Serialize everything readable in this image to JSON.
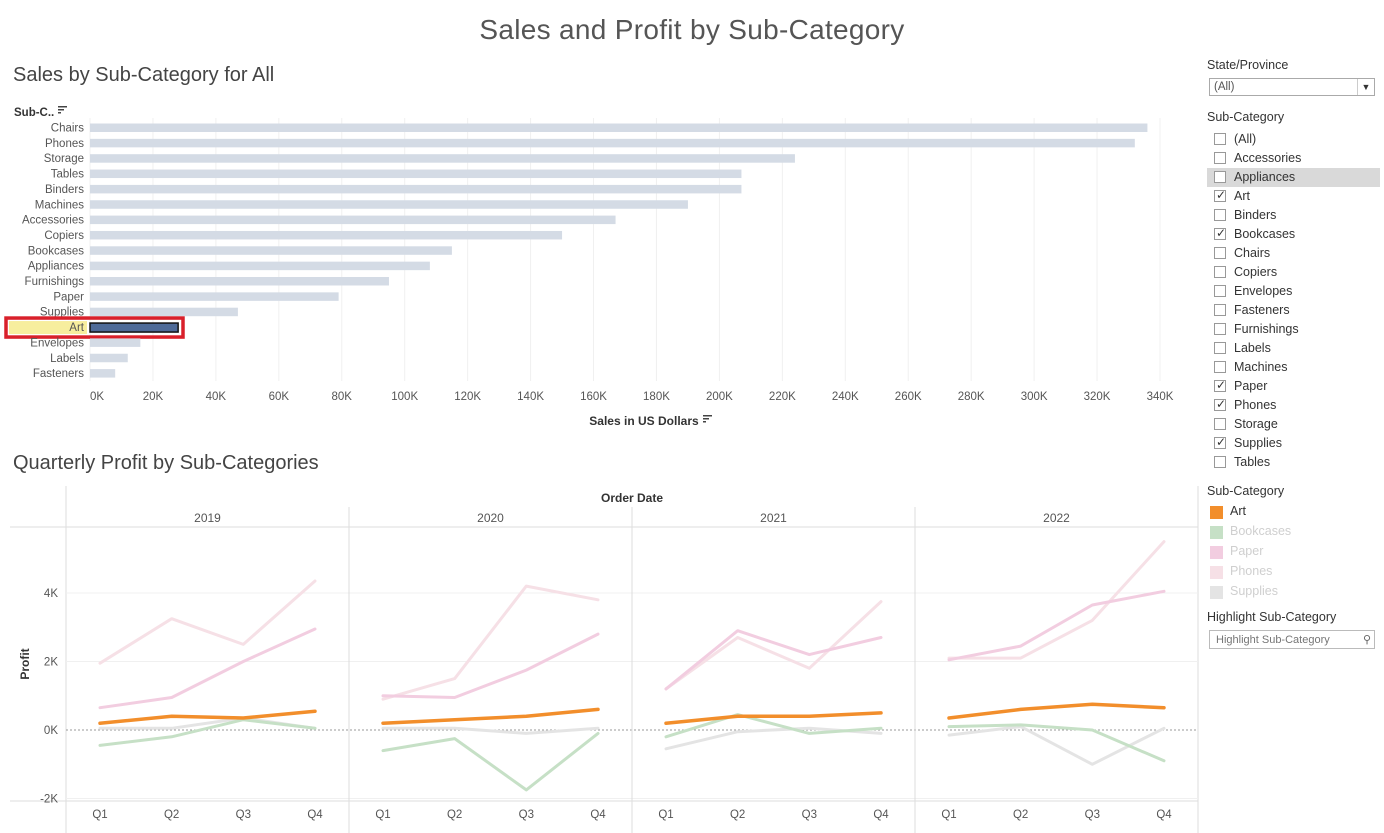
{
  "title": "Sales and Profit by Sub-Category",
  "bar_section": {
    "title": "Sales by Sub-Category for All",
    "axis_header": "Sub-C..",
    "xlabel": "Sales in US Dollars"
  },
  "line_section": {
    "title": "Quarterly Profit by Sub-Categories",
    "column_header": "Order Date",
    "ylabel": "Profit"
  },
  "colors": {
    "bar_default": "#d4dbe5",
    "bar_selected": "#4e6a98",
    "selection_outline": "#d9202a",
    "label_highlight": "#f7ee9e",
    "art": "#f28e2b",
    "bookcases": "#c6e0c6",
    "paper": "#f2cde0",
    "phones": "#f6e0e6",
    "supplies": "#e4e4e4"
  },
  "sidebar": {
    "state_label": "State/Province",
    "state_value": "(All)",
    "subcat_label": "Sub-Category",
    "filter_items": [
      {
        "label": "(All)",
        "checked": false
      },
      {
        "label": "Accessories",
        "checked": false
      },
      {
        "label": "Appliances",
        "checked": false,
        "hover": true
      },
      {
        "label": "Art",
        "checked": true
      },
      {
        "label": "Binders",
        "checked": false
      },
      {
        "label": "Bookcases",
        "checked": true
      },
      {
        "label": "Chairs",
        "checked": false
      },
      {
        "label": "Copiers",
        "checked": false
      },
      {
        "label": "Envelopes",
        "checked": false
      },
      {
        "label": "Fasteners",
        "checked": false
      },
      {
        "label": "Furnishings",
        "checked": false
      },
      {
        "label": "Labels",
        "checked": false
      },
      {
        "label": "Machines",
        "checked": false
      },
      {
        "label": "Paper",
        "checked": true
      },
      {
        "label": "Phones",
        "checked": true
      },
      {
        "label": "Storage",
        "checked": false
      },
      {
        "label": "Supplies",
        "checked": true
      },
      {
        "label": "Tables",
        "checked": false
      }
    ],
    "legend_label": "Sub-Category",
    "legend_items": [
      {
        "label": "Art",
        "color": "#f28e2b",
        "text_color": "#333333"
      },
      {
        "label": "Bookcases",
        "color": "#c6e0c6",
        "text_color": "#cfcfcf"
      },
      {
        "label": "Paper",
        "color": "#f2cde0",
        "text_color": "#cfcfcf"
      },
      {
        "label": "Phones",
        "color": "#f6e0e6",
        "text_color": "#cfcfcf"
      },
      {
        "label": "Supplies",
        "color": "#e4e4e4",
        "text_color": "#cfcfcf"
      }
    ],
    "highlight_label": "Highlight Sub-Category",
    "highlight_placeholder": "Highlight Sub-Category"
  },
  "chart_data": [
    {
      "type": "bar",
      "orientation": "horizontal",
      "categories": [
        "Chairs",
        "Phones",
        "Storage",
        "Tables",
        "Binders",
        "Machines",
        "Accessories",
        "Copiers",
        "Bookcases",
        "Appliances",
        "Furnishings",
        "Paper",
        "Supplies",
        "Art",
        "Envelopes",
        "Labels",
        "Fasteners"
      ],
      "values": [
        336000,
        332000,
        224000,
        207000,
        207000,
        190000,
        167000,
        150000,
        115000,
        108000,
        95000,
        79000,
        47000,
        28000,
        16000,
        12000,
        8000
      ],
      "selected": "Art",
      "xlabel": "Sales in US Dollars",
      "xlim": [
        0,
        340000
      ],
      "xticks": [
        "0K",
        "20K",
        "40K",
        "60K",
        "80K",
        "100K",
        "120K",
        "140K",
        "160K",
        "180K",
        "200K",
        "220K",
        "240K",
        "260K",
        "280K",
        "300K",
        "320K",
        "340K"
      ],
      "grid": true
    },
    {
      "type": "line",
      "column_header": "Order Date",
      "years": [
        "2019",
        "2020",
        "2021",
        "2022"
      ],
      "quarters": [
        "Q1",
        "Q2",
        "Q3",
        "Q4"
      ],
      "ylabel": "Profit",
      "ylim": [
        -2300,
        5800
      ],
      "yticks": [
        {
          "v": 4000,
          "label": "4K"
        },
        {
          "v": 2000,
          "label": "2K"
        },
        {
          "v": 0,
          "label": "0K"
        },
        {
          "v": -2000,
          "label": "-2K"
        }
      ],
      "series": [
        {
          "name": "Phones",
          "color": "#f6e0e6",
          "width": 3,
          "values": [
            [
              1950,
              3250,
              2500,
              4350
            ],
            [
              900,
              1500,
              4200,
              3800
            ],
            [
              1200,
              2700,
              1800,
              3750
            ],
            [
              2100,
              2100,
              3200,
              5500
            ]
          ]
        },
        {
          "name": "Paper",
          "color": "#f2cde0",
          "width": 3,
          "values": [
            [
              650,
              950,
              2000,
              2950
            ],
            [
              1000,
              950,
              1750,
              2800
            ],
            [
              1200,
              2900,
              2200,
              2700
            ],
            [
              2050,
              2450,
              3650,
              4050
            ]
          ]
        },
        {
          "name": "Supplies",
          "color": "#e4e4e4",
          "width": 3,
          "values": [
            [
              50,
              50,
              350,
              50
            ],
            [
              50,
              50,
              -100,
              50
            ],
            [
              -550,
              -50,
              50,
              -100
            ],
            [
              -150,
              100,
              -1000,
              50
            ]
          ]
        },
        {
          "name": "Bookcases",
          "color": "#c6e0c6",
          "width": 3,
          "values": [
            [
              -450,
              -200,
              300,
              50
            ],
            [
              -600,
              -250,
              -1750,
              -100
            ],
            [
              -200,
              450,
              -100,
              50
            ],
            [
              100,
              150,
              0,
              -900
            ]
          ]
        },
        {
          "name": "Art",
          "color": "#f28e2b",
          "width": 3.5,
          "values": [
            [
              200,
              400,
              350,
              550
            ],
            [
              200,
              300,
              400,
              600
            ],
            [
              200,
              400,
              400,
              500
            ],
            [
              350,
              600,
              750,
              650
            ]
          ]
        }
      ]
    }
  ]
}
